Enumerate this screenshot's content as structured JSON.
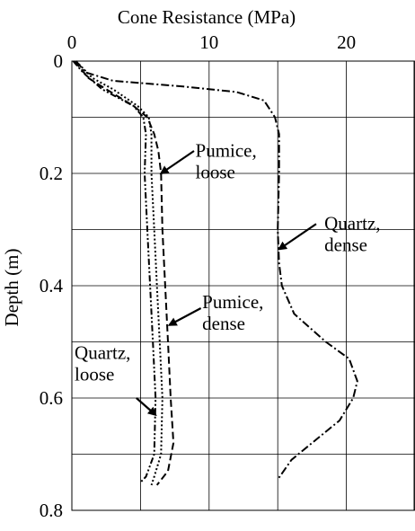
{
  "chart_data": {
    "type": "line",
    "title": "Cone Resistance (MPa)",
    "xlabel": "",
    "ylabel": "Depth (m)",
    "x_axis_position": "top",
    "y_axis_inverted": true,
    "xlim": [
      0,
      25
    ],
    "ylim": [
      0,
      0.8
    ],
    "x_ticks": [
      0,
      10,
      20
    ],
    "y_ticks": [
      0,
      0.2,
      0.4,
      0.6,
      0.8
    ],
    "x_tick_labels": [
      "0",
      "10",
      "20"
    ],
    "y_tick_labels": [
      "0",
      "0.2",
      "0.4",
      "0.6",
      "0.8"
    ],
    "grid": true,
    "grid_x": [
      0,
      5,
      10,
      15,
      20,
      25
    ],
    "grid_y": [
      0,
      0.1,
      0.2,
      0.3,
      0.4,
      0.5,
      0.6,
      0.7,
      0.8
    ],
    "series": [
      {
        "name": "Quartz, dense",
        "dash": "dash-dot",
        "points": [
          [
            0.3,
            0.0
          ],
          [
            1,
            0.02
          ],
          [
            3,
            0.035
          ],
          [
            8,
            0.045
          ],
          [
            12,
            0.055
          ],
          [
            14,
            0.07
          ],
          [
            14.8,
            0.1
          ],
          [
            15.1,
            0.13
          ],
          [
            15.1,
            0.2
          ],
          [
            15.0,
            0.3
          ],
          [
            15.1,
            0.36
          ],
          [
            15.3,
            0.4
          ],
          [
            16.2,
            0.45
          ],
          [
            18.5,
            0.5
          ],
          [
            20.2,
            0.53
          ],
          [
            20.8,
            0.57
          ],
          [
            20.5,
            0.6
          ],
          [
            19.5,
            0.64
          ],
          [
            17.5,
            0.68
          ],
          [
            16.0,
            0.71
          ],
          [
            15.0,
            0.745
          ]
        ]
      },
      {
        "name": "Pumice, loose",
        "dash": "dashed",
        "points": [
          [
            0.2,
            0.0
          ],
          [
            1.2,
            0.03
          ],
          [
            2.5,
            0.05
          ],
          [
            4.5,
            0.08
          ],
          [
            5.5,
            0.1
          ],
          [
            6.0,
            0.13
          ],
          [
            6.3,
            0.16
          ],
          [
            6.5,
            0.2
          ],
          [
            6.6,
            0.3
          ],
          [
            6.8,
            0.4
          ],
          [
            7.0,
            0.5
          ],
          [
            7.2,
            0.6
          ],
          [
            7.4,
            0.68
          ],
          [
            7.0,
            0.73
          ],
          [
            6.2,
            0.755
          ]
        ]
      },
      {
        "name": "Pumice, dense",
        "dash": "dotted",
        "points": [
          [
            0.3,
            0.0
          ],
          [
            1.5,
            0.03
          ],
          [
            3.0,
            0.05
          ],
          [
            4.8,
            0.08
          ],
          [
            5.6,
            0.1
          ],
          [
            5.8,
            0.13
          ],
          [
            5.8,
            0.2
          ],
          [
            6.0,
            0.3
          ],
          [
            6.2,
            0.4
          ],
          [
            6.4,
            0.5
          ],
          [
            6.6,
            0.6
          ],
          [
            6.5,
            0.7
          ],
          [
            6.0,
            0.74
          ],
          [
            5.8,
            0.755
          ]
        ]
      },
      {
        "name": "Quartz, loose",
        "dash": "dash-dot-dot",
        "points": [
          [
            0.1,
            0.0
          ],
          [
            0.8,
            0.02
          ],
          [
            2.2,
            0.05
          ],
          [
            4.5,
            0.08
          ],
          [
            5.2,
            0.1
          ],
          [
            5.4,
            0.13
          ],
          [
            5.3,
            0.2
          ],
          [
            5.5,
            0.3
          ],
          [
            5.7,
            0.4
          ],
          [
            5.9,
            0.5
          ],
          [
            6.1,
            0.6
          ],
          [
            6.0,
            0.7
          ],
          [
            5.4,
            0.74
          ],
          [
            5.0,
            0.75
          ]
        ]
      }
    ],
    "annotations": [
      {
        "lines": [
          "Pumice,",
          "loose"
        ],
        "text_at": [
          9.0,
          0.17
        ],
        "arrow_from": [
          8.9,
          0.16
        ],
        "arrow_to": [
          6.5,
          0.2
        ]
      },
      {
        "lines": [
          "Quartz,",
          "dense"
        ],
        "text_at": [
          18.4,
          0.3
        ],
        "arrow_from": [
          17.8,
          0.29
        ],
        "arrow_to": [
          15.1,
          0.335
        ]
      },
      {
        "lines": [
          "Pumice,",
          "dense"
        ],
        "text_at": [
          9.5,
          0.44
        ],
        "arrow_from": [
          9.4,
          0.44
        ],
        "arrow_to": [
          7.1,
          0.47
        ]
      },
      {
        "lines": [
          "Quartz,",
          "loose"
        ],
        "text_at": [
          0.2,
          0.53
        ],
        "arrow_from": [
          4.7,
          0.6
        ],
        "arrow_to": [
          6.1,
          0.63
        ]
      }
    ]
  }
}
